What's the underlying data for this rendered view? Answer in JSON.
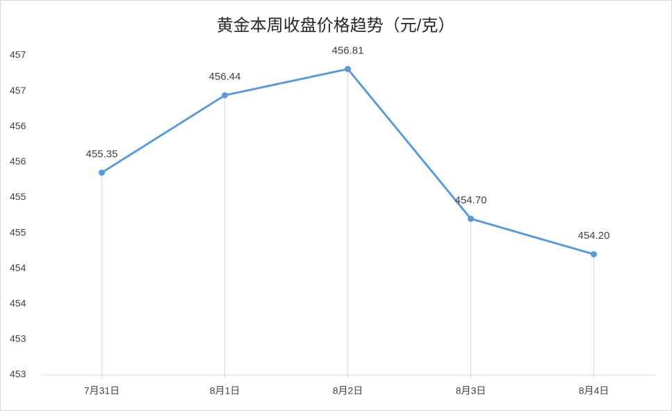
{
  "chart_data": {
    "type": "line",
    "title": "黄金本周收盘价格趋势（元/克）",
    "categories": [
      "7月31日",
      "8月1日",
      "8月2日",
      "8月3日",
      "8月4日"
    ],
    "values": [
      455.35,
      456.44,
      456.81,
      454.7,
      454.2
    ],
    "value_labels": [
      "455.35",
      "456.44",
      "456.81",
      "454.70",
      "454.20"
    ],
    "color": "#5b9bd5",
    "ylim": [
      452.5,
      457
    ],
    "yticks": [
      {
        "value": 452.5,
        "label": "453"
      },
      {
        "value": 453,
        "label": "453"
      },
      {
        "value": 453.5,
        "label": "454"
      },
      {
        "value": 454,
        "label": "454"
      },
      {
        "value": 454.5,
        "label": "455"
      },
      {
        "value": 455,
        "label": "455"
      },
      {
        "value": 455.5,
        "label": "456"
      },
      {
        "value": 456,
        "label": "456"
      },
      {
        "value": 456.5,
        "label": "457"
      },
      {
        "value": 457,
        "label": "457"
      }
    ],
    "drop_lines": true
  }
}
